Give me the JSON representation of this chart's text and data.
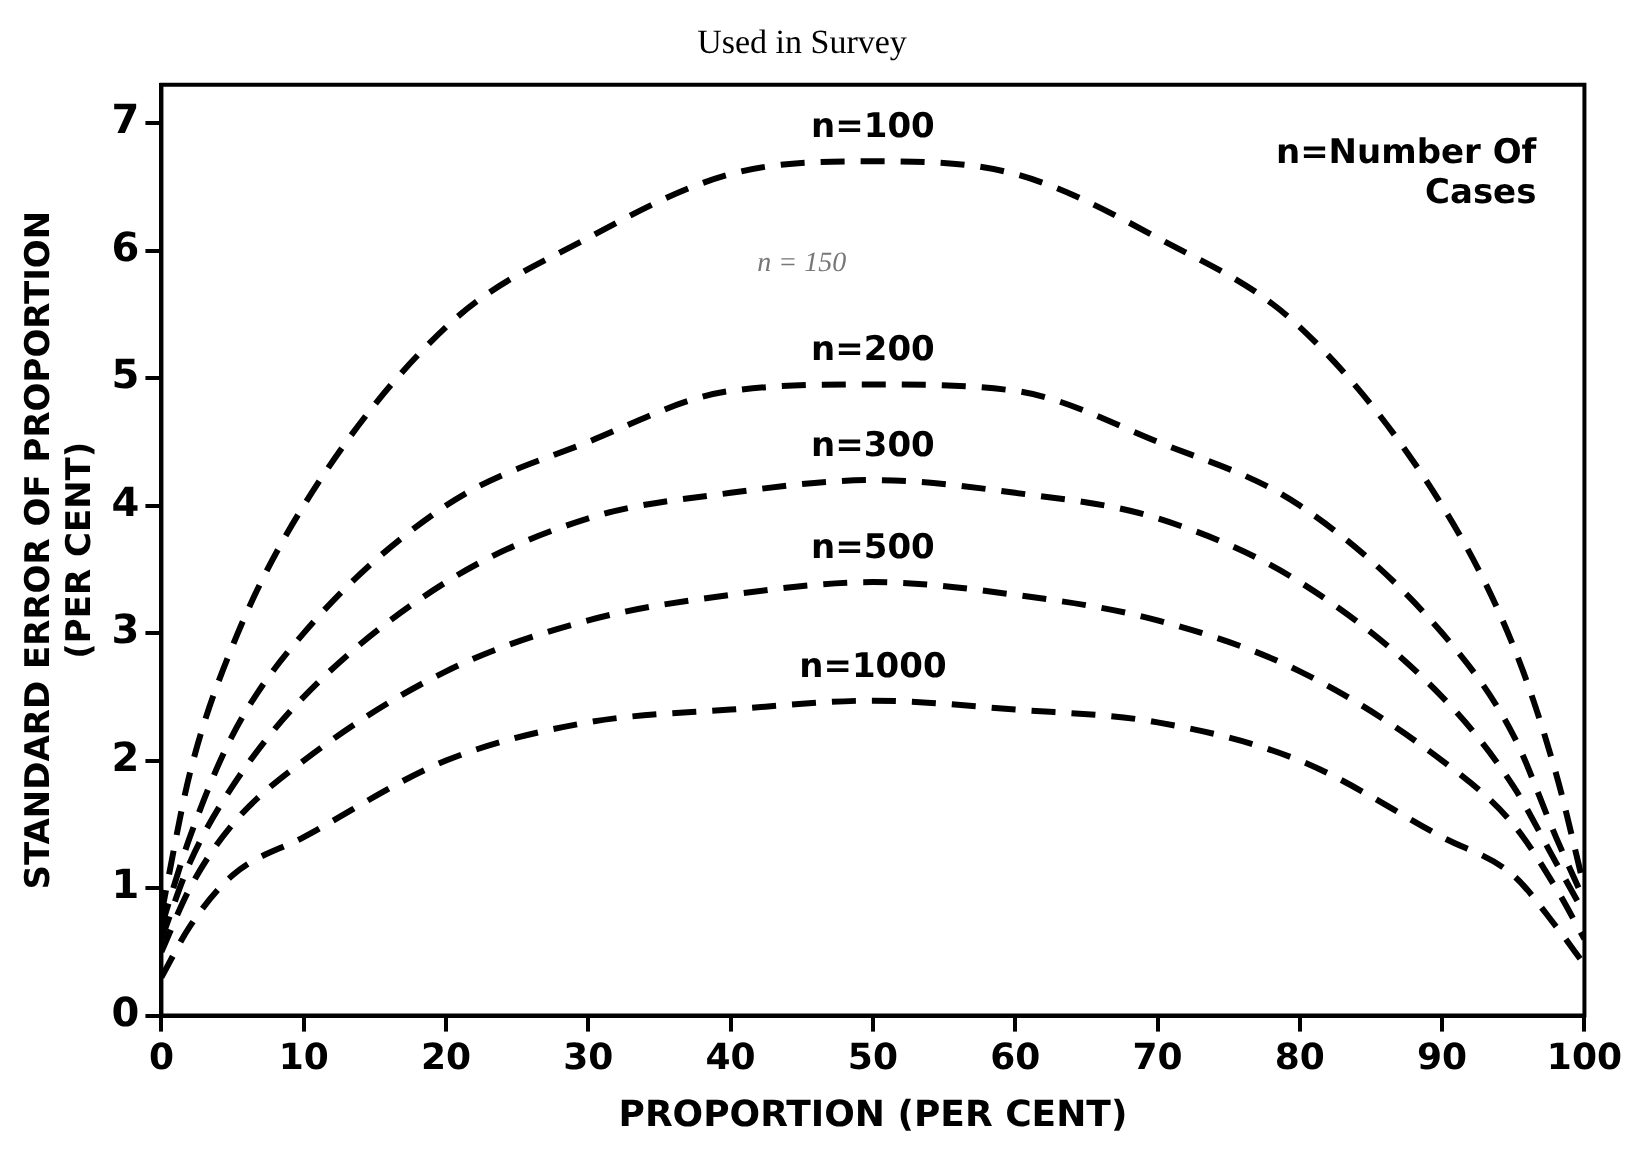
{
  "chart_data": {
    "type": "line",
    "title": "Used in Survey",
    "xlabel": "PROPORTION (PER CENT)",
    "ylabel": "STANDARD ERROR OF PROPORTION\n(PER CENT)",
    "x": [
      0,
      2,
      5,
      10,
      20,
      30,
      40,
      50,
      60,
      70,
      80,
      90,
      95,
      98,
      100
    ],
    "series": [
      {
        "name": "n=100",
        "color": "#000000",
        "values": [
          0.8,
          1.9,
          2.9,
          4.0,
          5.4,
          6.1,
          6.6,
          6.7,
          6.6,
          6.1,
          5.4,
          4.0,
          2.9,
          1.9,
          1.0
        ]
      },
      {
        "name": "n=200",
        "color": "#000000",
        "values": [
          0.7,
          1.4,
          2.2,
          3.0,
          4.0,
          4.5,
          4.9,
          4.95,
          4.9,
          4.5,
          4.0,
          3.0,
          2.2,
          1.4,
          0.9
        ]
      },
      {
        "name": "n=300",
        "color": "#000000",
        "values": [
          0.6,
          1.2,
          1.8,
          2.5,
          3.4,
          3.9,
          4.1,
          4.2,
          4.1,
          3.9,
          3.4,
          2.5,
          1.8,
          1.2,
          0.8
        ]
      },
      {
        "name": "n=500",
        "color": "#000000",
        "values": [
          0.5,
          1.0,
          1.5,
          2.0,
          2.7,
          3.1,
          3.3,
          3.4,
          3.3,
          3.1,
          2.7,
          2.0,
          1.5,
          1.0,
          0.6
        ]
      },
      {
        "name": "n=1000",
        "color": "#000000",
        "values": [
          0.3,
          0.7,
          1.1,
          1.4,
          2.0,
          2.3,
          2.4,
          2.47,
          2.4,
          2.3,
          2.0,
          1.4,
          1.1,
          0.7,
          0.4
        ]
      }
    ],
    "annotations": [
      "n=Number Of Cases",
      "n = 150"
    ],
    "xlim": [
      0,
      100
    ],
    "xticks": [
      0,
      10,
      20,
      30,
      40,
      50,
      60,
      70,
      80,
      90,
      100
    ],
    "ylim": [
      0,
      7.3
    ],
    "yticks": [
      0,
      1,
      2,
      3,
      4,
      5,
      6,
      7
    ],
    "line_style": "dashed",
    "grid": false,
    "legend": false
  }
}
